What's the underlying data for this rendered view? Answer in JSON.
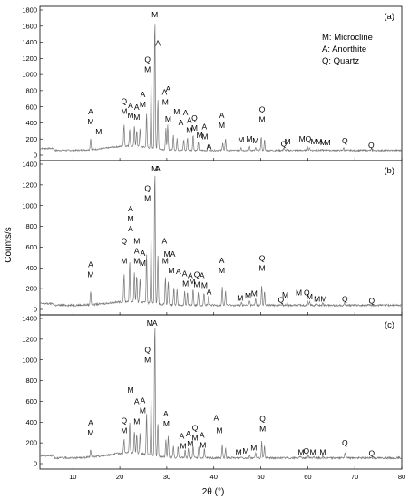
{
  "chart_data": {
    "type": "line",
    "x_label": "2θ (°)",
    "y_label": "Counts/s",
    "x_range": [
      3,
      80
    ],
    "x_ticks": [
      10,
      20,
      30,
      40,
      50,
      60,
      70,
      80
    ],
    "legend": {
      "position": "top-right",
      "entries": [
        "M: Microcline",
        "A: Anorthite",
        "Q: Quartz"
      ]
    },
    "panels": [
      {
        "label": "(a)",
        "y_range": [
          0,
          1800
        ],
        "y_ticks": [
          0,
          200,
          400,
          600,
          800,
          1000,
          1200,
          1400,
          1600,
          1800
        ],
        "baseline": 60,
        "peaks": [
          [
            13.8,
            200
          ],
          [
            20.9,
            330
          ],
          [
            22.1,
            280
          ],
          [
            23.1,
            310
          ],
          [
            23.6,
            260
          ],
          [
            24.3,
            290
          ],
          [
            25.7,
            480
          ],
          [
            26.65,
            880
          ],
          [
            27.45,
            1680
          ],
          [
            28.1,
            680
          ],
          [
            29.8,
            320
          ],
          [
            30.2,
            360
          ],
          [
            31.4,
            240
          ],
          [
            32.2,
            200
          ],
          [
            33.6,
            190
          ],
          [
            34.4,
            220
          ],
          [
            35.6,
            250
          ],
          [
            36.7,
            160
          ],
          [
            38.8,
            140
          ],
          [
            41.9,
            160
          ],
          [
            42.5,
            210
          ],
          [
            45.8,
            100
          ],
          [
            47.6,
            110
          ],
          [
            48.9,
            90
          ],
          [
            50.1,
            230
          ],
          [
            50.8,
            190
          ],
          [
            54.9,
            90
          ],
          [
            55.6,
            80
          ],
          [
            59.9,
            110
          ],
          [
            60.4,
            90
          ],
          [
            61.8,
            80
          ],
          [
            63.1,
            70
          ],
          [
            64.2,
            70
          ],
          [
            67.6,
            90
          ],
          [
            73.5,
            70
          ]
        ],
        "labels": [
          {
            "x": 13.8,
            "text": "A",
            "row": 2
          },
          {
            "x": 13.8,
            "text": "M",
            "row": 1
          },
          {
            "x": 15.5,
            "text": "M",
            "row": 0
          },
          {
            "x": 20.9,
            "text": "Q",
            "row": 2
          },
          {
            "x": 20.9,
            "text": "M",
            "row": 1
          },
          {
            "x": 22.3,
            "text": "A",
            "row": 2
          },
          {
            "x": 22.3,
            "text": "M",
            "row": 1
          },
          {
            "x": 23.6,
            "text": "A",
            "row": 2
          },
          {
            "x": 23.6,
            "text": "M",
            "row": 1
          },
          {
            "x": 24.9,
            "text": "A",
            "row": 3
          },
          {
            "x": 24.9,
            "text": "M",
            "row": 2
          },
          {
            "x": 25.9,
            "text": "Q",
            "row": 5
          },
          {
            "x": 25.9,
            "text": "M",
            "row": 4
          },
          {
            "x": 27.45,
            "text": "M",
            "row": 8
          },
          {
            "x": 28.1,
            "text": "A",
            "row": 5
          },
          {
            "x": 29.5,
            "text": "A",
            "row": 3
          },
          {
            "x": 29.7,
            "text": "M",
            "row": 2
          },
          {
            "x": 30.3,
            "text": "A",
            "row": 3
          },
          {
            "x": 30.3,
            "text": "M",
            "row": 0
          },
          {
            "x": 32.1,
            "text": "M",
            "row": 2
          },
          {
            "x": 33.0,
            "text": "A",
            "row": 1
          },
          {
            "x": 34.0,
            "text": "A",
            "row": 2
          },
          {
            "x": 34.8,
            "text": "A",
            "row": 1
          },
          {
            "x": 34.8,
            "text": "M",
            "row": 0
          },
          {
            "x": 35.9,
            "text": "Q",
            "row": 1
          },
          {
            "x": 35.9,
            "text": "M",
            "row": 0
          },
          {
            "x": 37.0,
            "text": "M",
            "row": 0
          },
          {
            "x": 38.0,
            "text": "A",
            "row": 1
          },
          {
            "x": 38.1,
            "text": "M",
            "row": 0
          },
          {
            "x": 39.0,
            "text": "A",
            "row": -1
          },
          {
            "x": 41.7,
            "text": "A",
            "row": 2
          },
          {
            "x": 41.7,
            "text": "M",
            "row": 1
          },
          {
            "x": 45.8,
            "text": "M",
            "row": 0
          },
          {
            "x": 47.6,
            "text": "M",
            "row": 0
          },
          {
            "x": 48.9,
            "text": "M",
            "row": 0
          },
          {
            "x": 50.3,
            "text": "Q",
            "row": 2
          },
          {
            "x": 50.3,
            "text": "M",
            "row": 1
          },
          {
            "x": 54.9,
            "text": "Q",
            "row": -0.3
          },
          {
            "x": 55.7,
            "text": "M",
            "row": 0
          },
          {
            "x": 58.8,
            "text": "M",
            "row": 0
          },
          {
            "x": 60.1,
            "text": "Q",
            "row": 0
          },
          {
            "x": 61.3,
            "text": "M",
            "row": 0
          },
          {
            "x": 62.4,
            "text": "M",
            "row": 0
          },
          {
            "x": 63.3,
            "text": "M",
            "row": 0
          },
          {
            "x": 64.2,
            "text": "M",
            "row": 0
          },
          {
            "x": 67.9,
            "text": "Q",
            "row": 0
          },
          {
            "x": 73.5,
            "text": "Q",
            "row": -0.3
          }
        ]
      },
      {
        "label": "(b)",
        "y_range": [
          0,
          1400
        ],
        "y_ticks": [
          0,
          200,
          400,
          600,
          800,
          1000,
          1200,
          1400
        ],
        "baseline": 40,
        "peaks": [
          [
            13.8,
            170
          ],
          [
            20.9,
            300
          ],
          [
            22.1,
            420
          ],
          [
            23.1,
            330
          ],
          [
            23.6,
            300
          ],
          [
            24.3,
            280
          ],
          [
            25.7,
            520
          ],
          [
            26.65,
            700
          ],
          [
            27.45,
            1340
          ],
          [
            28.1,
            520
          ],
          [
            29.7,
            300
          ],
          [
            30.3,
            270
          ],
          [
            31.5,
            210
          ],
          [
            32.2,
            200
          ],
          [
            33.8,
            180
          ],
          [
            34.4,
            160
          ],
          [
            35.6,
            200
          ],
          [
            36.7,
            170
          ],
          [
            37.9,
            160
          ],
          [
            38.9,
            130
          ],
          [
            41.8,
            210
          ],
          [
            42.5,
            180
          ],
          [
            45.9,
            70
          ],
          [
            47.6,
            90
          ],
          [
            48.9,
            110
          ],
          [
            50.2,
            230
          ],
          [
            50.8,
            180
          ],
          [
            54.6,
            50
          ],
          [
            55.6,
            70
          ],
          [
            59.9,
            90
          ],
          [
            60.4,
            80
          ],
          [
            61.8,
            60
          ],
          [
            63.2,
            60
          ],
          [
            67.8,
            60
          ],
          [
            73.5,
            40
          ]
        ],
        "labels": [
          {
            "x": 13.8,
            "text": "A",
            "row": 2
          },
          {
            "x": 13.8,
            "text": "M",
            "row": 1
          },
          {
            "x": 20.9,
            "text": "Q",
            "row": 3
          },
          {
            "x": 20.9,
            "text": "M",
            "row": 1
          },
          {
            "x": 22.3,
            "text": "A",
            "row": 5
          },
          {
            "x": 22.3,
            "text": "M",
            "row": 4
          },
          {
            "x": 22.3,
            "text": "A",
            "row": 3
          },
          {
            "x": 23.6,
            "text": "M",
            "row": 3
          },
          {
            "x": 23.6,
            "text": "A",
            "row": 2
          },
          {
            "x": 23.6,
            "text": "M",
            "row": 1
          },
          {
            "x": 24.9,
            "text": "A",
            "row": 2
          },
          {
            "x": 24.9,
            "text": "M",
            "row": 1
          },
          {
            "x": 25.9,
            "text": "Q",
            "row": 6
          },
          {
            "x": 25.9,
            "text": "M",
            "row": 5
          },
          {
            "x": 27.45,
            "text": "M",
            "row": 7
          },
          {
            "x": 28.1,
            "text": "A",
            "row": 10
          },
          {
            "x": 29.5,
            "text": "A",
            "row": 3
          },
          {
            "x": 29.7,
            "text": "M",
            "row": 1
          },
          {
            "x": 30.6,
            "text": "MA",
            "row": 2
          },
          {
            "x": 31.0,
            "text": "M",
            "row": 1
          },
          {
            "x": 32.5,
            "text": "A",
            "row": 1
          },
          {
            "x": 33.8,
            "text": "A",
            "row": 1
          },
          {
            "x": 34.0,
            "text": "M",
            "row": 0
          },
          {
            "x": 35.0,
            "text": "A",
            "row": 1
          },
          {
            "x": 35.4,
            "text": "M",
            "row": 0
          },
          {
            "x": 36.4,
            "text": "Q",
            "row": 1
          },
          {
            "x": 36.4,
            "text": "M",
            "row": 0
          },
          {
            "x": 37.5,
            "text": "A",
            "row": 1
          },
          {
            "x": 38.0,
            "text": "M",
            "row": 0
          },
          {
            "x": 39.0,
            "text": "A",
            "row": -0.3
          },
          {
            "x": 41.7,
            "text": "A",
            "row": 2
          },
          {
            "x": 41.7,
            "text": "M",
            "row": 1
          },
          {
            "x": 45.6,
            "text": "M",
            "row": -0.3
          },
          {
            "x": 47.3,
            "text": "M",
            "row": -0.3
          },
          {
            "x": 48.6,
            "text": "M",
            "row": -0.3
          },
          {
            "x": 50.3,
            "text": "Q",
            "row": 2
          },
          {
            "x": 50.3,
            "text": "M",
            "row": 1
          },
          {
            "x": 54.3,
            "text": "Q",
            "row": -0.3
          },
          {
            "x": 55.2,
            "text": "M",
            "row": 0
          },
          {
            "x": 58.1,
            "text": "M",
            "row": 0
          },
          {
            "x": 59.8,
            "text": "Q",
            "row": 0
          },
          {
            "x": 60.4,
            "text": "M",
            "row": -0.3
          },
          {
            "x": 62.0,
            "text": "M",
            "row": -0.3
          },
          {
            "x": 63.4,
            "text": "M",
            "row": -0.3
          },
          {
            "x": 67.9,
            "text": "Q",
            "row": -0.3
          },
          {
            "x": 73.6,
            "text": "Q",
            "row": -0.3
          }
        ]
      },
      {
        "label": "(c)",
        "y_range": [
          0,
          1400
        ],
        "y_ticks": [
          0,
          200,
          400,
          600,
          800,
          1000,
          1200,
          1400
        ],
        "baseline": 55,
        "peaks": [
          [
            13.8,
            130
          ],
          [
            20.9,
            190
          ],
          [
            22.1,
            350
          ],
          [
            23.1,
            270
          ],
          [
            23.6,
            240
          ],
          [
            24.3,
            250
          ],
          [
            25.7,
            450
          ],
          [
            26.65,
            620
          ],
          [
            27.45,
            1360
          ],
          [
            28.1,
            380
          ],
          [
            29.8,
            220
          ],
          [
            30.3,
            260
          ],
          [
            31.4,
            170
          ],
          [
            32.4,
            160
          ],
          [
            33.9,
            130
          ],
          [
            34.6,
            150
          ],
          [
            35.6,
            180
          ],
          [
            36.8,
            170
          ],
          [
            38.0,
            140
          ],
          [
            41.8,
            180
          ],
          [
            42.5,
            150
          ],
          [
            45.9,
            70
          ],
          [
            47.6,
            80
          ],
          [
            48.9,
            110
          ],
          [
            50.2,
            210
          ],
          [
            50.8,
            170
          ],
          [
            58.5,
            70
          ],
          [
            60.1,
            80
          ],
          [
            61.3,
            70
          ],
          [
            63.2,
            70
          ],
          [
            67.9,
            110
          ],
          [
            73.6,
            60
          ]
        ],
        "labels": [
          {
            "x": 13.8,
            "text": "A",
            "row": 2
          },
          {
            "x": 13.8,
            "text": "M",
            "row": 1
          },
          {
            "x": 20.9,
            "text": "Q",
            "row": 1.6
          },
          {
            "x": 20.9,
            "text": "M",
            "row": 0.6
          },
          {
            "x": 22.3,
            "text": "M",
            "row": 3
          },
          {
            "x": 23.6,
            "text": "A",
            "row": 3
          },
          {
            "x": 23.6,
            "text": "M",
            "row": 1
          },
          {
            "x": 24.9,
            "text": "A",
            "row": 3
          },
          {
            "x": 24.9,
            "text": "M",
            "row": 2
          },
          {
            "x": 25.9,
            "text": "Q",
            "row": 6
          },
          {
            "x": 25.9,
            "text": "M",
            "row": 5
          },
          {
            "x": 26.4,
            "text": "M",
            "row": 7
          },
          {
            "x": 27.45,
            "text": "A",
            "row": 10
          },
          {
            "x": 29.8,
            "text": "A",
            "row": 2
          },
          {
            "x": 29.9,
            "text": "M",
            "row": 1
          },
          {
            "x": 33.2,
            "text": "A",
            "row": 0.7
          },
          {
            "x": 33.5,
            "text": "M",
            "row": -0.3
          },
          {
            "x": 34.6,
            "text": "A",
            "row": 0.7
          },
          {
            "x": 35.0,
            "text": "M",
            "row": -0.3
          },
          {
            "x": 36.0,
            "text": "Q",
            "row": 1
          },
          {
            "x": 36.0,
            "text": "M",
            "row": 0
          },
          {
            "x": 37.5,
            "text": "A",
            "row": 0.7
          },
          {
            "x": 37.7,
            "text": "M",
            "row": -0.3
          },
          {
            "x": 40.5,
            "text": "A",
            "row": 2
          },
          {
            "x": 41.2,
            "text": "M",
            "row": 0.7
          },
          {
            "x": 45.3,
            "text": "M",
            "row": -0.3
          },
          {
            "x": 46.8,
            "text": "M",
            "row": -0.3
          },
          {
            "x": 48.5,
            "text": "M",
            "row": -0.3
          },
          {
            "x": 50.4,
            "text": "Q",
            "row": 1.6
          },
          {
            "x": 50.4,
            "text": "M",
            "row": 0.6
          },
          {
            "x": 58.6,
            "text": "M",
            "row": -0.3
          },
          {
            "x": 59.7,
            "text": "Q",
            "row": -0.3
          },
          {
            "x": 61.1,
            "text": "M",
            "row": -0.3
          },
          {
            "x": 63.2,
            "text": "M",
            "row": -0.3
          },
          {
            "x": 67.9,
            "text": "Q",
            "row": 0.2
          },
          {
            "x": 73.6,
            "text": "Q",
            "row": -0.3
          }
        ]
      }
    ]
  }
}
